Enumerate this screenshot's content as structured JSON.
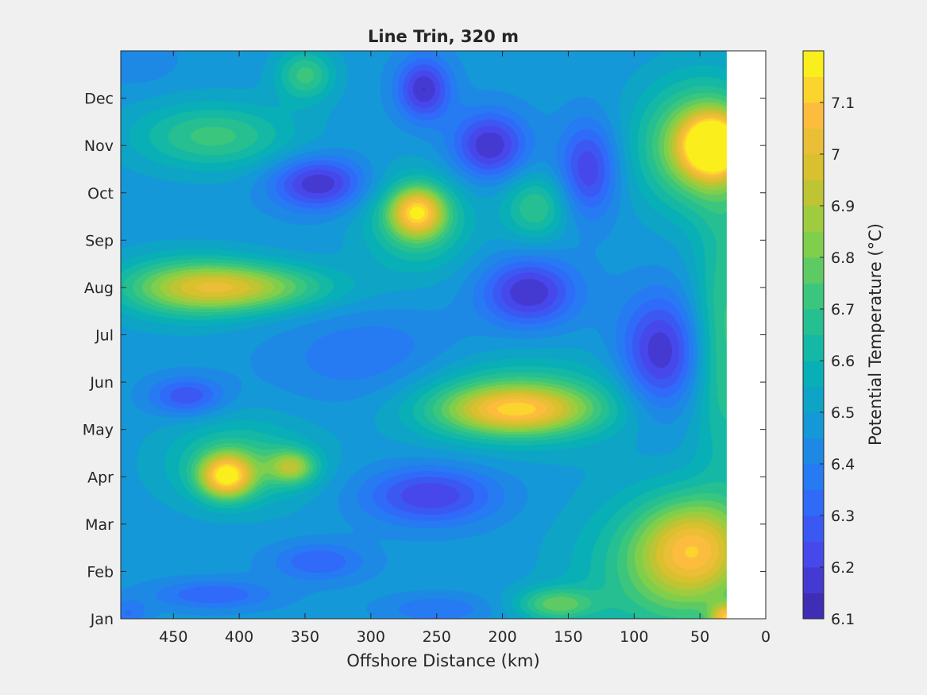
{
  "chart_data": {
    "type": "heatmap",
    "subtype": "filled-contour",
    "title": "Line Trin, 320 m",
    "xlabel": "Offshore Distance (km)",
    "ylabel": "",
    "colorbar_label": "Potential Temperature (°C)",
    "x_reversed": true,
    "xlim": [
      0,
      490
    ],
    "x_ticks": [
      450,
      400,
      350,
      300,
      250,
      200,
      150,
      100,
      50,
      0
    ],
    "x_tick_labels": [
      "450",
      "400",
      "350",
      "300",
      "250",
      "200",
      "150",
      "100",
      "50",
      "0"
    ],
    "y_ticks": [
      1,
      2,
      3,
      4,
      5,
      6,
      7,
      8,
      9,
      10,
      11,
      12
    ],
    "y_tick_labels": [
      "Jan",
      "Feb",
      "Mar",
      "Apr",
      "May",
      "Jun",
      "Jul",
      "Aug",
      "Sep",
      "Oct",
      "Nov",
      "Dec"
    ],
    "ylim": [
      1,
      13
    ],
    "data_extent_x": [
      30,
      490
    ],
    "clim": [
      6.1,
      7.2
    ],
    "contour_levels": [
      6.1,
      6.15,
      6.2,
      6.25,
      6.3,
      6.35,
      6.4,
      6.45,
      6.5,
      6.55,
      6.6,
      6.65,
      6.7,
      6.75,
      6.8,
      6.85,
      6.9,
      6.95,
      7.0,
      7.05,
      7.1,
      7.15,
      7.2
    ],
    "colorbar_ticks": [
      6.1,
      6.2,
      6.3,
      6.4,
      6.5,
      6.6,
      6.7,
      6.8,
      6.9,
      7,
      7.1
    ],
    "colorbar_tick_labels": [
      "6.1",
      "6.2",
      "6.3",
      "6.4",
      "6.5",
      "6.6",
      "6.7",
      "6.8",
      "6.9",
      "7",
      "7.1"
    ],
    "colormap": "parula",
    "background_value": 6.47,
    "features": [
      {
        "x": 410,
        "y": 4.0,
        "value": 7.05,
        "sx": 20,
        "sy": 0.45
      },
      {
        "x": 400,
        "y": 4.3,
        "value": 6.7,
        "sx": 55,
        "sy": 0.9
      },
      {
        "x": 360,
        "y": 4.2,
        "value": 6.8,
        "sx": 18,
        "sy": 0.35
      },
      {
        "x": 400,
        "y": 8.0,
        "value": 6.85,
        "sx": 70,
        "sy": 0.5
      },
      {
        "x": 440,
        "y": 8.0,
        "value": 6.7,
        "sx": 55,
        "sy": 0.7
      },
      {
        "x": 420,
        "y": 11.2,
        "value": 6.72,
        "sx": 60,
        "sy": 0.7
      },
      {
        "x": 350,
        "y": 12.5,
        "value": 6.72,
        "sx": 22,
        "sy": 0.55
      },
      {
        "x": 265,
        "y": 9.6,
        "value": 6.95,
        "sx": 20,
        "sy": 0.5
      },
      {
        "x": 265,
        "y": 9.4,
        "value": 6.72,
        "sx": 40,
        "sy": 1.0
      },
      {
        "x": 175,
        "y": 9.7,
        "value": 6.7,
        "sx": 25,
        "sy": 0.7
      },
      {
        "x": 190,
        "y": 5.4,
        "value": 6.9,
        "sx": 55,
        "sy": 0.5
      },
      {
        "x": 190,
        "y": 5.6,
        "value": 6.72,
        "sx": 85,
        "sy": 0.9
      },
      {
        "x": 160,
        "y": 1.3,
        "value": 6.75,
        "sx": 30,
        "sy": 0.35
      },
      {
        "x": 40,
        "y": 11.0,
        "value": 7.15,
        "sx": 22,
        "sy": 0.6
      },
      {
        "x": 50,
        "y": 11.0,
        "value": 6.9,
        "sx": 45,
        "sy": 1.3
      },
      {
        "x": 55,
        "y": 2.5,
        "value": 6.85,
        "sx": 40,
        "sy": 1.0
      },
      {
        "x": 70,
        "y": 2.0,
        "value": 6.75,
        "sx": 70,
        "sy": 1.6
      },
      {
        "x": 30,
        "y": 7.0,
        "value": 6.72,
        "sx": 25,
        "sy": 3.0
      },
      {
        "x": 30,
        "y": 1.0,
        "value": 6.95,
        "sx": 12,
        "sy": 0.3
      },
      {
        "x": 340,
        "y": 10.2,
        "value": 6.15,
        "sx": 35,
        "sy": 0.55
      },
      {
        "x": 260,
        "y": 12.2,
        "value": 6.15,
        "sx": 20,
        "sy": 0.65
      },
      {
        "x": 210,
        "y": 11.0,
        "value": 6.15,
        "sx": 28,
        "sy": 0.7
      },
      {
        "x": 135,
        "y": 10.5,
        "value": 6.2,
        "sx": 22,
        "sy": 1.0
      },
      {
        "x": 180,
        "y": 7.9,
        "value": 6.15,
        "sx": 35,
        "sy": 0.7
      },
      {
        "x": 80,
        "y": 6.6,
        "value": 6.15,
        "sx": 30,
        "sy": 1.2
      },
      {
        "x": 255,
        "y": 3.6,
        "value": 6.2,
        "sx": 50,
        "sy": 0.6
      },
      {
        "x": 340,
        "y": 2.2,
        "value": 6.3,
        "sx": 35,
        "sy": 0.4
      },
      {
        "x": 420,
        "y": 1.5,
        "value": 6.3,
        "sx": 45,
        "sy": 0.3
      },
      {
        "x": 440,
        "y": 5.7,
        "value": 6.25,
        "sx": 28,
        "sy": 0.4
      },
      {
        "x": 300,
        "y": 6.5,
        "value": 6.35,
        "sx": 70,
        "sy": 1.0
      },
      {
        "x": 250,
        "y": 1.2,
        "value": 6.35,
        "sx": 40,
        "sy": 0.3
      },
      {
        "x": 480,
        "y": 12.8,
        "value": 6.4,
        "sx": 30,
        "sy": 0.5
      },
      {
        "x": 485,
        "y": 1.1,
        "value": 6.35,
        "sx": 15,
        "sy": 0.3
      }
    ]
  }
}
